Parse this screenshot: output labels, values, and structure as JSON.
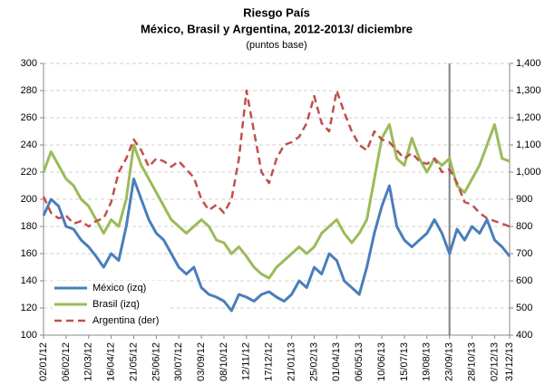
{
  "chart_data": {
    "type": "line",
    "title": "Riesgo País",
    "subtitle": "México, Brasil y Argentina, 2012-2013/ diciembre",
    "unit": "(puntos base)",
    "categories": [
      "02/01/12",
      null,
      null,
      "06/02/12",
      null,
      null,
      "12/03/12",
      null,
      null,
      "16/04/12",
      null,
      null,
      "21/05/12",
      null,
      null,
      "25/06/12",
      null,
      null,
      "30/07/12",
      null,
      null,
      "03/09/12",
      null,
      null,
      "08/10/12",
      null,
      null,
      "12/11/12",
      null,
      null,
      "17/12/12",
      null,
      null,
      "21/01/13",
      null,
      null,
      "25/02/13",
      null,
      null,
      "01/04/13",
      null,
      null,
      "06/05/13",
      null,
      null,
      "10/06/13",
      null,
      null,
      "15/07/13",
      null,
      null,
      "19/08/13",
      null,
      null,
      "23/09/13",
      null,
      null,
      "28/10/13",
      null,
      null,
      "02/12/13",
      null,
      "31/12/13"
    ],
    "series": [
      {
        "name": "México (izq)",
        "color": "#4a7ebb",
        "style": "solid",
        "axis": "y",
        "values": [
          188,
          200,
          195,
          180,
          178,
          170,
          165,
          158,
          150,
          160,
          155,
          180,
          215,
          200,
          185,
          175,
          170,
          160,
          150,
          145,
          150,
          135,
          130,
          128,
          125,
          118,
          130,
          128,
          125,
          130,
          132,
          128,
          125,
          130,
          140,
          135,
          150,
          145,
          160,
          155,
          140,
          135,
          130,
          150,
          175,
          195,
          210,
          180,
          170,
          165,
          170,
          175,
          185,
          175,
          160,
          178,
          170,
          180,
          175,
          185,
          170,
          165,
          158
        ]
      },
      {
        "name": "Brasil (izq)",
        "color": "#9bbb59",
        "style": "solid",
        "axis": "y",
        "values": [
          220,
          235,
          225,
          215,
          210,
          200,
          195,
          185,
          175,
          185,
          180,
          200,
          240,
          225,
          215,
          205,
          195,
          185,
          180,
          175,
          180,
          185,
          180,
          170,
          168,
          160,
          165,
          158,
          150,
          145,
          142,
          150,
          155,
          160,
          165,
          160,
          165,
          175,
          180,
          185,
          175,
          168,
          175,
          185,
          215,
          245,
          255,
          230,
          225,
          245,
          230,
          220,
          230,
          225,
          230,
          210,
          205,
          215,
          225,
          240,
          255,
          230,
          228
        ]
      },
      {
        "name": "Argentina (der)",
        "color": "#c0504d",
        "style": "dashed",
        "axis": "y2",
        "values": [
          910,
          850,
          830,
          840,
          810,
          820,
          800,
          820,
          830,
          890,
          1000,
          1050,
          1120,
          1080,
          1020,
          1050,
          1040,
          1020,
          1040,
          1010,
          980,
          900,
          860,
          880,
          850,
          900,
          1050,
          1300,
          1150,
          1000,
          960,
          1050,
          1100,
          1110,
          1130,
          1180,
          1280,
          1180,
          1150,
          1300,
          1220,
          1150,
          1100,
          1080,
          1150,
          1120,
          1110,
          1080,
          1050,
          1070,
          1040,
          1030,
          1050,
          1000,
          1010,
          960,
          890,
          880,
          850,
          830,
          820,
          810,
          800
        ]
      }
    ],
    "ylim": [
      100,
      300
    ],
    "yticks": [
      100,
      120,
      140,
      160,
      180,
      200,
      220,
      240,
      260,
      280,
      300
    ],
    "y2lim": [
      400,
      1400
    ],
    "y2ticks": [
      400,
      500,
      600,
      700,
      800,
      900,
      {
        "value": 1000,
        "label": "1,000"
      },
      {
        "value": 1100,
        "label": "1,100"
      },
      {
        "value": 1200,
        "label": "1,200"
      },
      {
        "value": 1300,
        "label": "1,300"
      },
      {
        "value": 1400,
        "label": "1,400"
      }
    ],
    "grid": true,
    "legend": "lower left",
    "reference_line": {
      "category_index": 54,
      "color": "#808080"
    }
  }
}
